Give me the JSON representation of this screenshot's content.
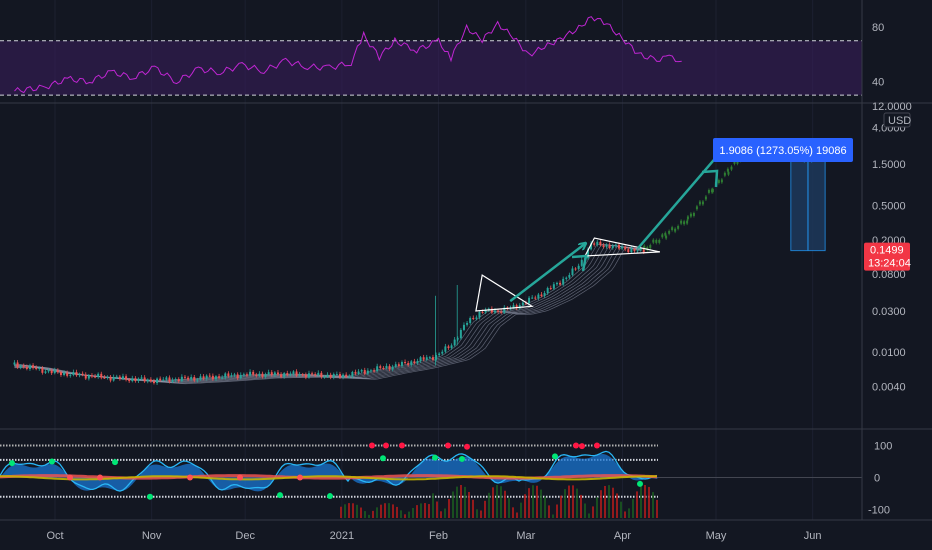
{
  "colors": {
    "background": "#131722",
    "separator": "#363a45",
    "grid": "#1c2030",
    "axis_text": "#b2b5be",
    "rsi_line": "#c026d3",
    "rsi_band": "#3a1d5c",
    "candle_up": "#26a69a",
    "candle_down": "#ef5350",
    "projection": "#2e7d32",
    "arrow": "#26a69a",
    "measure_fill": "#1e3a5f",
    "measure_border": "#2196f3",
    "price_badge": "#f23645",
    "measure_badge": "#2962ff",
    "osc_area": "#1976d2",
    "osc_line": "#29b6f6"
  },
  "chart_data": [
    {
      "type": "line",
      "name": "rsi-panel",
      "title": "",
      "y_ticks": [
        80,
        40
      ],
      "ylim": [
        22,
        100
      ],
      "bands": [
        70,
        30
      ],
      "x_range": [
        "2020-09-18",
        "2021-06-25"
      ],
      "points": [
        [
          "2020-09-18",
          33
        ],
        [
          "2020-09-28",
          36
        ],
        [
          "2020-10-05",
          42
        ],
        [
          "2020-10-12",
          40
        ],
        [
          "2020-10-19",
          47
        ],
        [
          "2020-10-26",
          43
        ],
        [
          "2020-11-02",
          50
        ],
        [
          "2020-11-09",
          40
        ],
        [
          "2020-11-16",
          49
        ],
        [
          "2020-11-23",
          47
        ],
        [
          "2020-11-30",
          52
        ],
        [
          "2020-12-07",
          48
        ],
        [
          "2020-12-14",
          55
        ],
        [
          "2020-12-21",
          51
        ],
        [
          "2020-12-28",
          50
        ],
        [
          "2021-01-04",
          54
        ],
        [
          "2021-01-08",
          74
        ],
        [
          "2021-01-13",
          58
        ],
        [
          "2021-01-18",
          70
        ],
        [
          "2021-01-25",
          63
        ],
        [
          "2021-02-01",
          70
        ],
        [
          "2021-02-05",
          57
        ],
        [
          "2021-02-10",
          80
        ],
        [
          "2021-02-15",
          70
        ],
        [
          "2021-02-20",
          83
        ],
        [
          "2021-02-25",
          72
        ],
        [
          "2021-03-02",
          60
        ],
        [
          "2021-03-07",
          65
        ],
        [
          "2021-03-12",
          72
        ],
        [
          "2021-03-17",
          77
        ],
        [
          "2021-03-22",
          88
        ],
        [
          "2021-03-27",
          82
        ],
        [
          "2021-04-01",
          72
        ],
        [
          "2021-04-06",
          60
        ],
        [
          "2021-04-12",
          56
        ],
        [
          "2021-04-16",
          58
        ],
        [
          "2021-04-20",
          55
        ]
      ]
    },
    {
      "type": "line",
      "name": "price-panel",
      "title": "",
      "scale": "log",
      "currency_label": "USD",
      "y_ticks": [
        "4.0000",
        "1.5000",
        "0.5000",
        "0.2000",
        "0.0800",
        "0.0300",
        "0.0100",
        "0.0040"
      ],
      "top_tick_partial": "12.0000",
      "x_ticks": [
        "Oct",
        "Nov",
        "Dec",
        "2021",
        "Feb",
        "Mar",
        "Apr",
        "May",
        "Jun"
      ],
      "series": [
        {
          "name": "",
          "points": [
            [
              "2020-09-18",
              0.0072
            ],
            [
              "2020-10-01",
              0.0058
            ],
            [
              "2020-10-15",
              0.0052
            ],
            [
              "2020-11-01",
              0.0047
            ],
            [
              "2020-11-15",
              0.005
            ],
            [
              "2020-12-01",
              0.0055
            ],
            [
              "2020-12-15",
              0.0056
            ],
            [
              "2021-01-01",
              0.0053
            ],
            [
              "2021-01-10",
              0.0062
            ],
            [
              "2021-01-20",
              0.0072
            ],
            [
              "2021-01-31",
              0.009
            ],
            [
              "2021-02-05",
              0.012
            ],
            [
              "2021-02-10",
              0.022
            ],
            [
              "2021-02-15",
              0.03
            ],
            [
              "2021-02-20",
              0.03
            ],
            [
              "2021-02-25",
              0.033
            ],
            [
              "2021-03-05",
              0.045
            ],
            [
              "2021-03-12",
              0.065
            ],
            [
              "2021-03-18",
              0.1
            ],
            [
              "2021-03-22",
              0.18
            ],
            [
              "2021-03-28",
              0.17
            ],
            [
              "2021-04-05",
              0.15
            ],
            [
              "2021-04-08",
              0.1499
            ]
          ]
        }
      ],
      "projection": [
        [
          "2021-04-08",
          0.1499
        ],
        [
          "2021-04-15",
          0.22
        ],
        [
          "2021-04-22",
          0.33
        ],
        [
          "2021-04-30",
          0.75
        ],
        [
          "2021-05-05",
          1.2
        ],
        [
          "2021-05-10",
          1.9
        ]
      ],
      "current_price_label": "0.1499",
      "countdown_label": "13:24:04",
      "measure_label": "1.9086 (1273.05%) 19086"
    },
    {
      "type": "line",
      "name": "oscillator-panel",
      "title": "",
      "y_ticks": [
        "100",
        "0",
        "-100"
      ],
      "levels": [
        100,
        55,
        0,
        -60
      ]
    }
  ]
}
